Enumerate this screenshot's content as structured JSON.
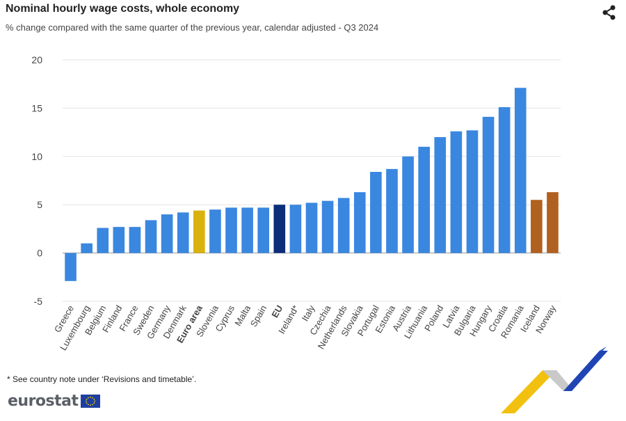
{
  "header": {
    "title": "Nominal hourly wage costs, whole economy",
    "subtitle": "% change compared with the same quarter of the previous year, calendar adjusted - Q3 2024",
    "share_icon": "share-icon"
  },
  "footer": {
    "note": "* See country note under ‘Revisions and timetable’.",
    "logo_text": "eurostat",
    "flag_icon": "eu-flag-icon"
  },
  "chart_data": {
    "type": "bar",
    "title": "Nominal hourly wage costs, whole economy",
    "subtitle": "% change compared with the same quarter of the previous year, calendar adjusted - Q3 2024",
    "xlabel": "",
    "ylabel": "",
    "ylim": [
      -5,
      20
    ],
    "yticks": [
      20,
      15,
      10,
      5,
      0,
      -5
    ],
    "grid": true,
    "legend": "none",
    "categories": [
      "Greece",
      "Luxembourg",
      "Belgium",
      "Finland",
      "France",
      "Sweden",
      "Germany",
      "Denmark",
      "Euro area",
      "Slovenia",
      "Cyprus",
      "Malta",
      "Spain",
      "EU",
      "Ireland*",
      "Italy",
      "Czechia",
      "Netherlands",
      "Slovakia",
      "Portugal",
      "Estonia",
      "Austria",
      "Lithuania",
      "Poland",
      "Latvia",
      "Bulgaria",
      "Hungary",
      "Croatia",
      "Romania",
      "Iceland",
      "Norway"
    ],
    "values": [
      -2.9,
      1.0,
      2.6,
      2.7,
      2.7,
      3.4,
      4.0,
      4.2,
      4.4,
      4.5,
      4.7,
      4.7,
      4.7,
      5.0,
      5.0,
      5.2,
      5.4,
      5.7,
      6.3,
      8.4,
      8.7,
      10.0,
      11.0,
      12.0,
      12.6,
      12.7,
      14.1,
      15.1,
      17.1,
      5.5,
      6.3
    ],
    "bold_categories": [
      "Euro area",
      "EU"
    ],
    "colors": {
      "default": "#3a87e0",
      "Euro area": "#d9b20f",
      "EU": "#0b2d7a",
      "Iceland": "#b0601f",
      "Norway": "#b0601f"
    }
  }
}
